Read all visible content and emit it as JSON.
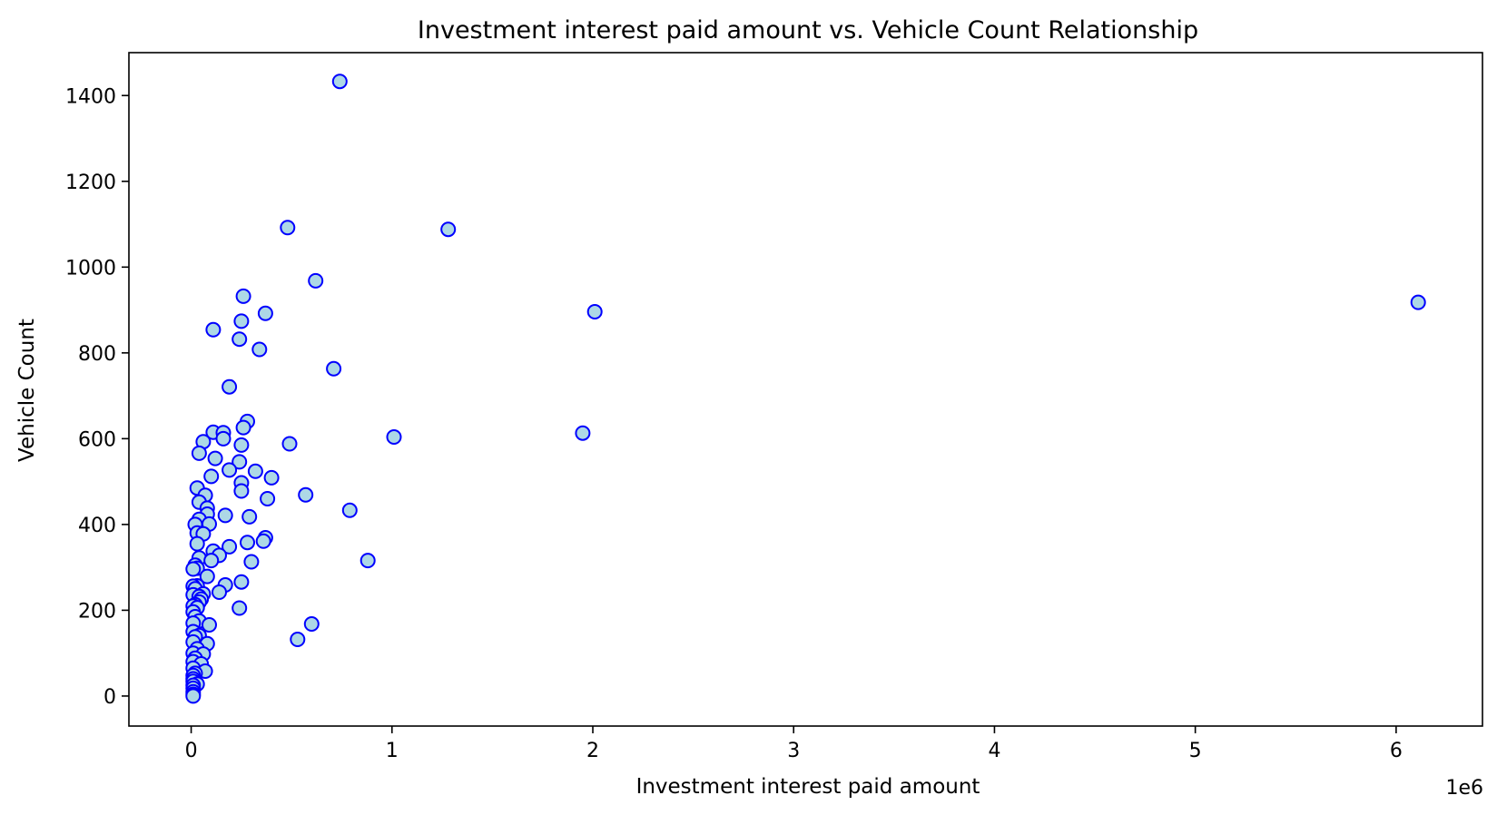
{
  "chart_data": {
    "type": "scatter",
    "title": "Investment interest paid amount vs. Vehicle Count Relationship",
    "xlabel": "Investment interest paid amount",
    "ylabel": "Vehicle Count",
    "x_offset_label": "1e6",
    "x_scale": 1000000,
    "xlim": [
      -310000,
      6430000
    ],
    "ylim": [
      -70,
      1500
    ],
    "xticks": [
      0,
      1000000,
      2000000,
      3000000,
      4000000,
      5000000,
      6000000
    ],
    "xtick_labels": [
      "0",
      "1",
      "2",
      "3",
      "4",
      "5",
      "6"
    ],
    "yticks": [
      0,
      200,
      400,
      600,
      800,
      1000,
      1200,
      1400
    ],
    "ytick_labels": [
      "0",
      "200",
      "400",
      "600",
      "800",
      "1000",
      "1200",
      "1400"
    ],
    "grid": false,
    "marker_fill": "#add8e6",
    "marker_edge": "#0000ff",
    "points": [
      [
        740000,
        1433
      ],
      [
        480000,
        1092
      ],
      [
        1280000,
        1088
      ],
      [
        620000,
        968
      ],
      [
        260000,
        932
      ],
      [
        370000,
        892
      ],
      [
        2010000,
        896
      ],
      [
        6110000,
        918
      ],
      [
        250000,
        874
      ],
      [
        110000,
        854
      ],
      [
        240000,
        832
      ],
      [
        340000,
        808
      ],
      [
        710000,
        763
      ],
      [
        190000,
        721
      ],
      [
        280000,
        640
      ],
      [
        260000,
        626
      ],
      [
        110000,
        615
      ],
      [
        160000,
        614
      ],
      [
        1950000,
        613
      ],
      [
        160000,
        600
      ],
      [
        1010000,
        604
      ],
      [
        60000,
        593
      ],
      [
        490000,
        588
      ],
      [
        250000,
        585
      ],
      [
        40000,
        566
      ],
      [
        120000,
        554
      ],
      [
        240000,
        546
      ],
      [
        190000,
        527
      ],
      [
        320000,
        524
      ],
      [
        100000,
        512
      ],
      [
        400000,
        509
      ],
      [
        250000,
        497
      ],
      [
        30000,
        485
      ],
      [
        250000,
        478
      ],
      [
        70000,
        468
      ],
      [
        570000,
        469
      ],
      [
        380000,
        460
      ],
      [
        40000,
        452
      ],
      [
        80000,
        438
      ],
      [
        790000,
        433
      ],
      [
        170000,
        421
      ],
      [
        290000,
        418
      ],
      [
        80000,
        424
      ],
      [
        40000,
        412
      ],
      [
        90000,
        401
      ],
      [
        20000,
        400
      ],
      [
        30000,
        380
      ],
      [
        60000,
        378
      ],
      [
        370000,
        369
      ],
      [
        360000,
        361
      ],
      [
        280000,
        358
      ],
      [
        30000,
        355
      ],
      [
        190000,
        348
      ],
      [
        110000,
        338
      ],
      [
        140000,
        328
      ],
      [
        40000,
        322
      ],
      [
        300000,
        313
      ],
      [
        880000,
        316
      ],
      [
        100000,
        316
      ],
      [
        20000,
        305
      ],
      [
        30000,
        298
      ],
      [
        10000,
        296
      ],
      [
        80000,
        279
      ],
      [
        250000,
        266
      ],
      [
        170000,
        259
      ],
      [
        30000,
        257
      ],
      [
        10000,
        256
      ],
      [
        20000,
        250
      ],
      [
        140000,
        242
      ],
      [
        60000,
        238
      ],
      [
        10000,
        236
      ],
      [
        40000,
        232
      ],
      [
        50000,
        226
      ],
      [
        40000,
        219
      ],
      [
        20000,
        213
      ],
      [
        10000,
        210
      ],
      [
        30000,
        206
      ],
      [
        240000,
        205
      ],
      [
        10000,
        196
      ],
      [
        20000,
        185
      ],
      [
        40000,
        175
      ],
      [
        10000,
        170
      ],
      [
        600000,
        168
      ],
      [
        90000,
        166
      ],
      [
        10000,
        150
      ],
      [
        40000,
        141
      ],
      [
        20000,
        138
      ],
      [
        530000,
        132
      ],
      [
        10000,
        126
      ],
      [
        80000,
        122
      ],
      [
        30000,
        110
      ],
      [
        10000,
        100
      ],
      [
        60000,
        98
      ],
      [
        20000,
        88
      ],
      [
        10000,
        80
      ],
      [
        50000,
        75
      ],
      [
        10000,
        65
      ],
      [
        70000,
        58
      ],
      [
        20000,
        53
      ],
      [
        10000,
        48
      ],
      [
        10000,
        40
      ],
      [
        10000,
        34
      ],
      [
        30000,
        28
      ],
      [
        10000,
        25
      ],
      [
        10000,
        18
      ],
      [
        10000,
        10
      ],
      [
        10000,
        4
      ],
      [
        10000,
        0
      ]
    ]
  }
}
